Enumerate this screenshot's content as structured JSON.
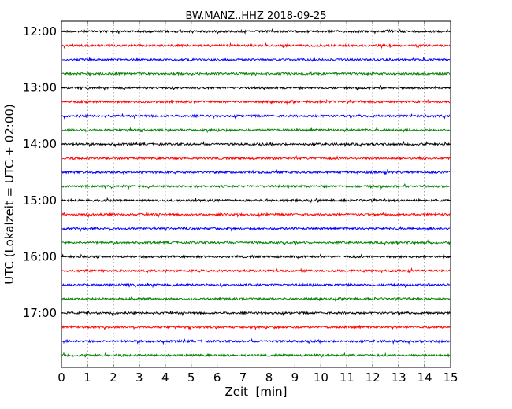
{
  "chart_data": {
    "type": "line",
    "title": "BW.MANZ..HHZ 2018-09-25",
    "xlabel": "Zeit  [min]",
    "ylabel": "UTC (Lokalzeit = UTC + 02:00)",
    "xlim": [
      0,
      15
    ],
    "x_ticks": [
      "0",
      "1",
      "2",
      "3",
      "4",
      "5",
      "6",
      "7",
      "8",
      "9",
      "10",
      "11",
      "12",
      "13",
      "14",
      "15"
    ],
    "y_ticks": [
      "12:00",
      "13:00",
      "14:00",
      "15:00",
      "16:00",
      "17:00"
    ],
    "grid": "vertical dotted",
    "trace_interval_min": 15,
    "trace_colors": [
      "#000000",
      "#ff0000",
      "#0000ff",
      "#008000"
    ],
    "traces": [
      {
        "start": "12:00",
        "color": "#000000"
      },
      {
        "start": "12:15",
        "color": "#ff0000"
      },
      {
        "start": "12:30",
        "color": "#0000ff"
      },
      {
        "start": "12:45",
        "color": "#008000"
      },
      {
        "start": "13:00",
        "color": "#000000"
      },
      {
        "start": "13:15",
        "color": "#ff0000"
      },
      {
        "start": "13:30",
        "color": "#0000ff"
      },
      {
        "start": "13:45",
        "color": "#008000"
      },
      {
        "start": "14:00",
        "color": "#000000"
      },
      {
        "start": "14:15",
        "color": "#ff0000"
      },
      {
        "start": "14:30",
        "color": "#0000ff"
      },
      {
        "start": "14:45",
        "color": "#008000"
      },
      {
        "start": "15:00",
        "color": "#000000"
      },
      {
        "start": "15:15",
        "color": "#ff0000"
      },
      {
        "start": "15:30",
        "color": "#0000ff"
      },
      {
        "start": "15:45",
        "color": "#008000"
      },
      {
        "start": "16:00",
        "color": "#000000"
      },
      {
        "start": "16:15",
        "color": "#ff0000"
      },
      {
        "start": "16:30",
        "color": "#0000ff"
      },
      {
        "start": "16:45",
        "color": "#008000"
      },
      {
        "start": "17:00",
        "color": "#000000"
      },
      {
        "start": "17:15",
        "color": "#ff0000"
      },
      {
        "start": "17:30",
        "color": "#0000ff"
      },
      {
        "start": "17:45",
        "color": "#008000"
      }
    ]
  }
}
